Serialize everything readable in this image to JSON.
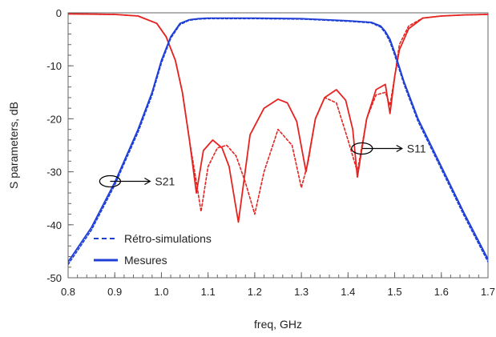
{
  "chart_data": {
    "type": "line",
    "xlabel": "freq, GHz",
    "ylabel": "S parameters, dB",
    "xlim": [
      0.8,
      1.7
    ],
    "ylim": [
      -50,
      0
    ],
    "x_ticks": [
      0.8,
      0.9,
      1.0,
      1.1,
      1.2,
      1.3,
      1.4,
      1.5,
      1.6,
      1.7
    ],
    "y_ticks": [
      0,
      -10,
      -20,
      -30,
      -40,
      -50
    ],
    "grid": false,
    "legend": {
      "placement": "bottom-left",
      "entries": [
        {
          "label": "Rétro-simulations",
          "style": "dashed"
        },
        {
          "label": "Mesures",
          "style": "solid"
        }
      ]
    },
    "colors": {
      "S11": "#e52421",
      "S21": "#1f3fd6"
    },
    "annotations": [
      {
        "text": "S21",
        "x": 0.89,
        "y": -31.8
      },
      {
        "text": "S11",
        "x": 1.43,
        "y": -25.6
      }
    ],
    "series": [
      {
        "name": "S11",
        "style": "solid",
        "x": [
          0.8,
          0.9,
          0.95,
          0.99,
          1.01,
          1.03,
          1.045,
          1.06,
          1.075,
          1.09,
          1.11,
          1.13,
          1.145,
          1.165,
          1.19,
          1.22,
          1.25,
          1.27,
          1.29,
          1.31,
          1.33,
          1.35,
          1.375,
          1.395,
          1.41,
          1.42,
          1.44,
          1.46,
          1.48,
          1.49,
          1.5,
          1.51,
          1.53,
          1.56,
          1.6,
          1.65,
          1.7
        ],
        "y": [
          -0.2,
          -0.3,
          -0.6,
          -2.0,
          -4.5,
          -9.0,
          -15.0,
          -24.0,
          -34.0,
          -26.0,
          -24.0,
          -25.5,
          -29.0,
          -39.5,
          -23.0,
          -18.0,
          -16.3,
          -17.0,
          -20.5,
          -30.0,
          -20.0,
          -16.0,
          -14.5,
          -16.5,
          -22.0,
          -31.0,
          -20.0,
          -14.5,
          -13.5,
          -19.0,
          -12.0,
          -7.0,
          -3.0,
          -1.0,
          -0.6,
          -0.4,
          -0.3
        ]
      },
      {
        "name": "S11",
        "style": "dashed",
        "x": [
          0.8,
          0.9,
          0.95,
          0.99,
          1.01,
          1.03,
          1.045,
          1.06,
          1.075,
          1.085,
          1.1,
          1.12,
          1.14,
          1.16,
          1.18,
          1.2,
          1.22,
          1.25,
          1.28,
          1.3,
          1.315,
          1.33,
          1.35,
          1.375,
          1.4,
          1.42,
          1.44,
          1.46,
          1.48,
          1.49,
          1.5,
          1.51,
          1.53,
          1.56,
          1.6,
          1.65,
          1.7
        ],
        "y": [
          -0.2,
          -0.3,
          -0.6,
          -2.0,
          -4.5,
          -9.0,
          -15.0,
          -24.0,
          -32.0,
          -37.5,
          -29.0,
          -25.5,
          -25.0,
          -27.0,
          -32.0,
          -38.0,
          -30.0,
          -22.0,
          -25.0,
          -33.0,
          -28.0,
          -20.0,
          -16.0,
          -17.0,
          -24.0,
          -30.0,
          -20.0,
          -15.5,
          -15.0,
          -17.5,
          -12.0,
          -6.0,
          -2.5,
          -1.0,
          -0.6,
          -0.4,
          -0.3
        ]
      },
      {
        "name": "S21",
        "style": "solid",
        "x": [
          0.8,
          0.85,
          0.9,
          0.95,
          0.98,
          1.0,
          1.02,
          1.04,
          1.06,
          1.08,
          1.1,
          1.2,
          1.3,
          1.4,
          1.45,
          1.47,
          1.48,
          1.49,
          1.5,
          1.52,
          1.55,
          1.6,
          1.65,
          1.7
        ],
        "y": [
          -47.0,
          -40.5,
          -32.0,
          -22.0,
          -15.0,
          -9.0,
          -4.5,
          -2.0,
          -1.3,
          -1.1,
          -1.0,
          -1.0,
          -1.1,
          -1.5,
          -1.8,
          -2.5,
          -3.5,
          -5.0,
          -7.5,
          -13.0,
          -20.0,
          -29.0,
          -38.0,
          -46.5
        ]
      },
      {
        "name": "S21",
        "style": "dashed",
        "x": [
          0.8,
          0.85,
          0.9,
          0.95,
          0.98,
          1.0,
          1.02,
          1.04,
          1.06,
          1.08,
          1.1,
          1.2,
          1.3,
          1.4,
          1.45,
          1.47,
          1.48,
          1.49,
          1.5,
          1.52,
          1.55,
          1.6,
          1.65,
          1.7
        ],
        "y": [
          -47.5,
          -41.0,
          -32.5,
          -22.5,
          -15.5,
          -9.5,
          -4.8,
          -2.2,
          -1.4,
          -1.2,
          -1.1,
          -1.1,
          -1.2,
          -1.6,
          -1.9,
          -2.7,
          -3.8,
          -5.5,
          -8.0,
          -13.5,
          -20.5,
          -29.5,
          -38.5,
          -47.0
        ]
      }
    ]
  }
}
